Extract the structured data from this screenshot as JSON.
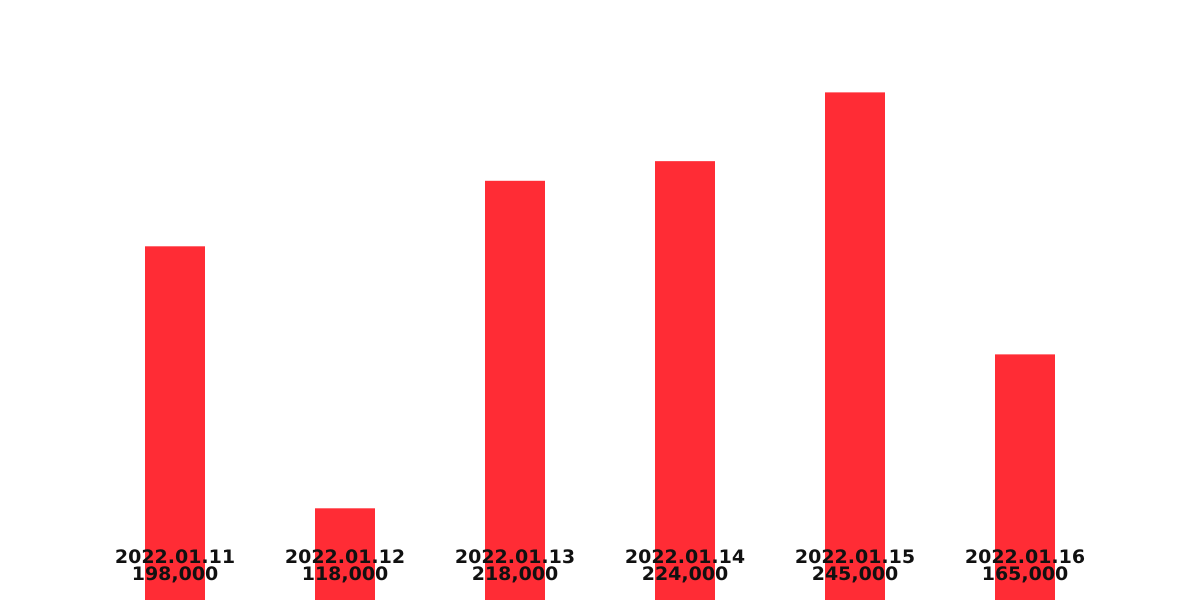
{
  "chart_data": {
    "type": "bar",
    "categories": [
      "2022.01.11",
      "2022.01.12",
      "2022.01.13",
      "2022.01.14",
      "2022.01.15",
      "2022.01.16"
    ],
    "values": [
      198000,
      118000,
      218000,
      224000,
      245000,
      165000
    ],
    "value_labels": [
      "198,000",
      "118,000",
      "218,000",
      "224,000",
      "245,000",
      "165,000"
    ],
    "title": "",
    "xlabel": "",
    "ylabel": "",
    "ylim": [
      90000,
      250000
    ],
    "grid": false,
    "legend": "none",
    "bar_color": "#ff2c35"
  }
}
